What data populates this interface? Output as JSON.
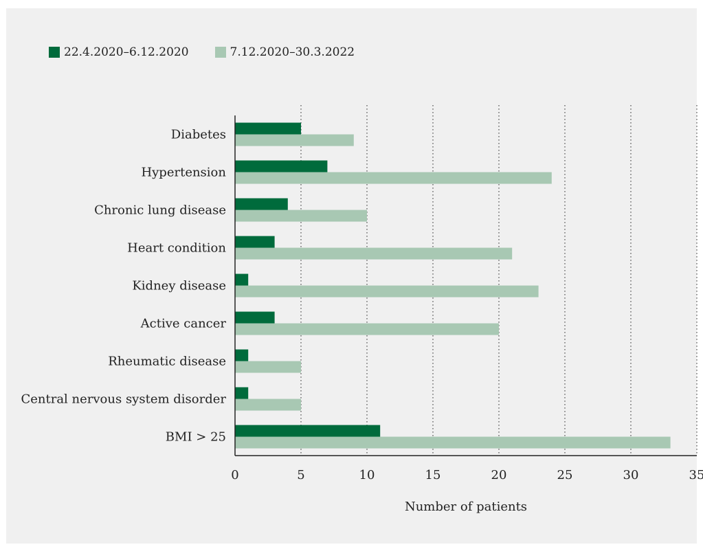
{
  "chart_data": {
    "type": "bar",
    "orientation": "horizontal",
    "categories": [
      "Diabetes",
      "Hypertension",
      "Chronic lung disease",
      "Heart condition",
      "Kidney disease",
      "Active cancer",
      "Rheumatic disease",
      "Central nervous system disorder",
      "BMI > 25"
    ],
    "series": [
      {
        "name": "22.4.2020–6.12.2020",
        "color": "#006b3c",
        "values": [
          5,
          7,
          4,
          3,
          1,
          3,
          1,
          1,
          11
        ]
      },
      {
        "name": "7.12.2020–30.3.2022",
        "color": "#a8c8b3",
        "values": [
          9,
          24,
          10,
          21,
          23,
          20,
          5,
          5,
          33
        ]
      }
    ],
    "xlabel": "Number of patients",
    "ylabel": "",
    "xlim": [
      0,
      35
    ],
    "xticks": [
      0,
      5,
      10,
      15,
      20,
      25,
      30,
      35
    ],
    "grid": "vertical dotted",
    "legend_position": "top-left"
  }
}
